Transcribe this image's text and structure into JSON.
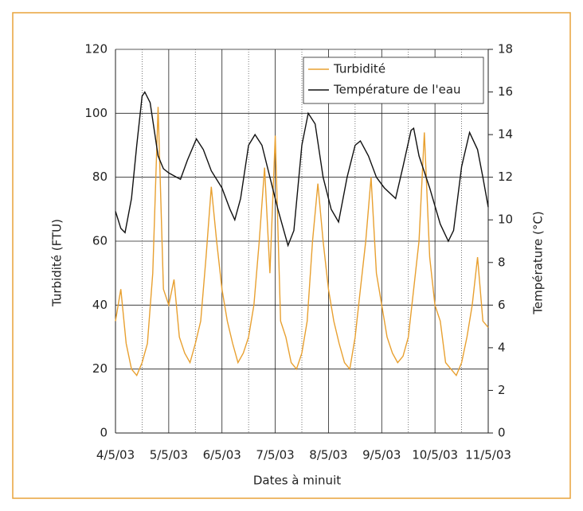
{
  "chart_data": {
    "type": "line",
    "xlabel": "Dates à minuit",
    "ylabel": "Turbidité (FTU)",
    "y2label": "Température (°C)",
    "xlim": [
      0,
      7
    ],
    "xticks": [
      {
        "value": 0,
        "label": "4/5/03"
      },
      {
        "value": 1,
        "label": "5/5/03"
      },
      {
        "value": 2,
        "label": "6/5/03"
      },
      {
        "value": 3,
        "label": "7/5/03"
      },
      {
        "value": 4,
        "label": "8/5/03"
      },
      {
        "value": 5,
        "label": "9/5/03"
      },
      {
        "value": 6,
        "label": "10/5/03"
      },
      {
        "value": 7,
        "label": "11/5/03"
      }
    ],
    "ylim": [
      0,
      120
    ],
    "yticks": [
      0,
      20,
      40,
      60,
      80,
      100,
      120
    ],
    "y2lim": [
      0,
      18
    ],
    "y2ticks": [
      0,
      2,
      4,
      6,
      8,
      10,
      12,
      14,
      16,
      18
    ],
    "grid": true,
    "legend": "upper right",
    "series": [
      {
        "name": "Turbidité",
        "color": "#e8a030",
        "axis": "y",
        "x": [
          0,
          0.1,
          0.2,
          0.3,
          0.4,
          0.5,
          0.6,
          0.7,
          0.8,
          0.9,
          1,
          1.1,
          1.2,
          1.3,
          1.4,
          1.5,
          1.6,
          1.7,
          1.8,
          1.9,
          2,
          2.1,
          2.2,
          2.3,
          2.4,
          2.5,
          2.6,
          2.7,
          2.8,
          2.9,
          3,
          3.1,
          3.2,
          3.3,
          3.4,
          3.5,
          3.6,
          3.7,
          3.8,
          3.9,
          4,
          4.1,
          4.2,
          4.3,
          4.4,
          4.5,
          4.6,
          4.7,
          4.8,
          4.9,
          5,
          5.1,
          5.2,
          5.3,
          5.4,
          5.5,
          5.6,
          5.7,
          5.8,
          5.9,
          6,
          6.1,
          6.2,
          6.3,
          6.4,
          6.5,
          6.6,
          6.7,
          6.8,
          6.9,
          7
        ],
        "values": [
          35,
          45,
          28,
          20,
          18,
          22,
          28,
          50,
          102,
          45,
          40,
          48,
          30,
          25,
          22,
          28,
          35,
          55,
          77,
          60,
          45,
          35,
          28,
          22,
          25,
          30,
          40,
          60,
          83,
          50,
          93,
          35,
          30,
          22,
          20,
          25,
          35,
          60,
          78,
          60,
          45,
          35,
          28,
          22,
          20,
          30,
          45,
          60,
          80,
          50,
          40,
          30,
          25,
          22,
          24,
          30,
          45,
          60,
          94,
          55,
          40,
          35,
          22,
          20,
          18,
          22,
          30,
          40,
          55,
          35,
          33
        ]
      },
      {
        "name": "Température de l'eau",
        "color": "#111111",
        "axis": "y2",
        "x": [
          0,
          0.1,
          0.18,
          0.3,
          0.4,
          0.5,
          0.55,
          0.65,
          0.8,
          0.9,
          1,
          1.15,
          1.22,
          1.35,
          1.52,
          1.65,
          1.8,
          2,
          2.15,
          2.24,
          2.35,
          2.5,
          2.62,
          2.75,
          2.9,
          3.05,
          3.24,
          3.35,
          3.5,
          3.62,
          3.75,
          3.9,
          4.05,
          4.19,
          4.35,
          4.5,
          4.6,
          4.75,
          4.9,
          5.05,
          5.26,
          5.4,
          5.55,
          5.6,
          5.7,
          5.9,
          6.1,
          6.25,
          6.35,
          6.5,
          6.65,
          6.8,
          6.9,
          7
        ],
        "values": [
          10.4,
          9.6,
          9.4,
          11,
          13.5,
          15.8,
          16,
          15.5,
          13,
          12.4,
          12.2,
          12,
          11.9,
          12.8,
          13.8,
          13.3,
          12.3,
          11.5,
          10.5,
          10,
          11,
          13.5,
          14,
          13.5,
          12,
          10.5,
          8.8,
          9.5,
          13.5,
          15,
          14.5,
          12,
          10.5,
          9.9,
          12,
          13.5,
          13.7,
          13,
          12,
          11.5,
          11,
          12.5,
          14.2,
          14.3,
          13,
          11.5,
          9.8,
          9,
          9.5,
          12.5,
          14.1,
          13.3,
          12,
          10.6
        ]
      }
    ]
  }
}
